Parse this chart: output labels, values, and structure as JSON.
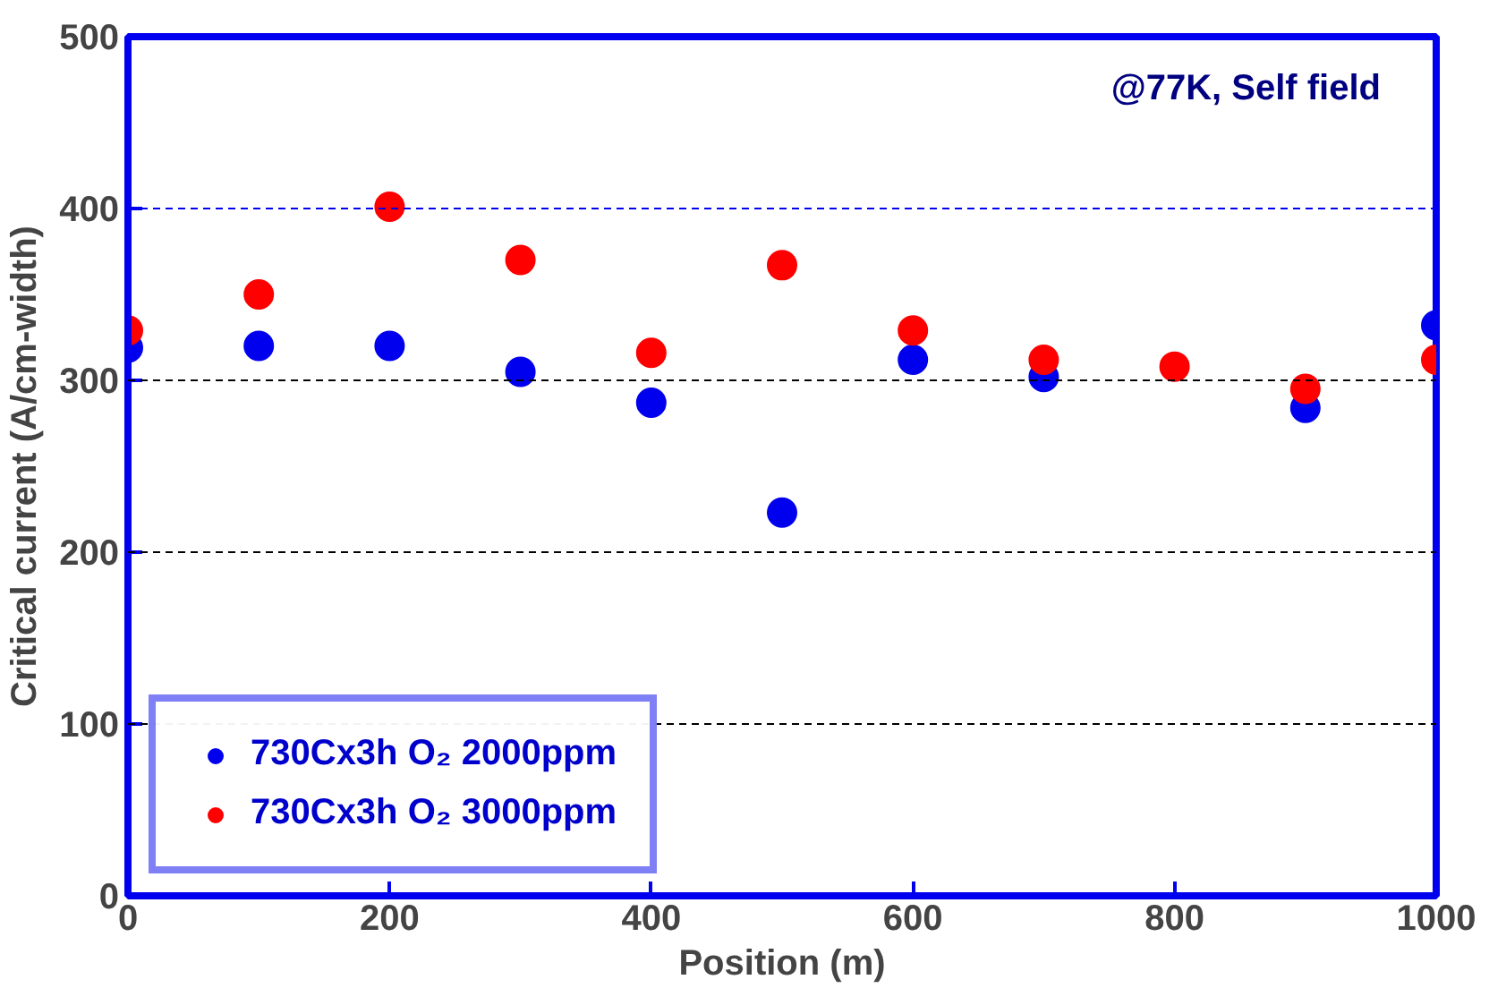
{
  "chart_data": {
    "type": "scatter",
    "xlabel": "Position (m)",
    "ylabel": "Critical current (A/cm-width)",
    "x": [
      0,
      100,
      200,
      300,
      400,
      500,
      600,
      700,
      800,
      900,
      1000
    ],
    "series": [
      {
        "name": "730Cx3h O₂ 2000ppm",
        "color": "#0000ee",
        "values": [
          319,
          320,
          320,
          305,
          287,
          223,
          312,
          302,
          null,
          284,
          332
        ]
      },
      {
        "name": "730Cx3h O₂ 3000ppm",
        "color": "#ff0000",
        "values": [
          329,
          350,
          401,
          370,
          316,
          367,
          329,
          312,
          308,
          295,
          312
        ]
      }
    ],
    "xlim": [
      0,
      1000
    ],
    "xticks": [
      0,
      200,
      400,
      600,
      800,
      1000
    ],
    "ylim": [
      0,
      500
    ],
    "yticks": [
      0,
      100,
      200,
      300,
      400,
      500
    ],
    "ref_lines": [
      {
        "axis": "y",
        "value": 100,
        "color": "#000000",
        "line_style": "dashed"
      },
      {
        "axis": "y",
        "value": 200,
        "color": "#000000",
        "line_style": "dashed"
      },
      {
        "axis": "y",
        "value": 300,
        "color": "#000000",
        "line_style": "dashed"
      },
      {
        "axis": "y",
        "value": 400,
        "color": "#0000ee",
        "line_style": "dashed"
      }
    ],
    "annotations": [
      "@77K, Self field"
    ],
    "marker": "circle",
    "legend": "bottom left"
  }
}
